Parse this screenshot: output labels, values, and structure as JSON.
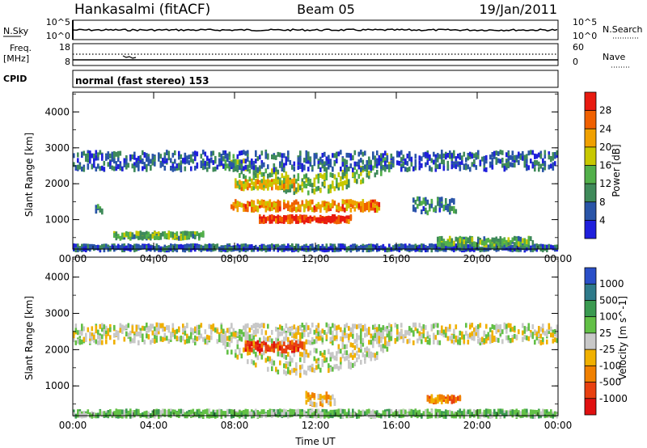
{
  "header": {
    "station": "Hankasalmi (fitACF)",
    "beam": "Beam 05",
    "date": "19/Jan/2011"
  },
  "panels": {
    "nsky": {
      "label": "N.Sky",
      "tick_top": "10^5",
      "tick_bottom": "10^0",
      "right_label": "N.Search",
      "right_tick_top": "10^5",
      "right_tick_bottom": "10^0"
    },
    "freq": {
      "label_line1": "Freq.",
      "label_line2": "[MHz]",
      "tick_top": "18",
      "tick_bottom": "8",
      "right_label": "Nave",
      "right_tick_top": "60",
      "right_tick_bottom": "0"
    },
    "cpid": {
      "label": "CPID",
      "text": "normal (fast stereo) 153"
    }
  },
  "chart_data": [
    {
      "type": "heatmap",
      "name": "power",
      "title": "",
      "xlabel": "",
      "ylabel": "Slant Range [km]",
      "x_ticks": [
        "00:00",
        "04:00",
        "08:00",
        "12:00",
        "16:00",
        "20:00",
        "00:00"
      ],
      "xlim_hours": [
        0,
        24
      ],
      "ylim_km": [
        180,
        4550
      ],
      "y_ticks": [
        "1000",
        "2000",
        "3000",
        "4000"
      ],
      "colorbar": {
        "label": "Power [dB]",
        "ticks": [
          "4",
          "8",
          "12",
          "16",
          "20",
          "24",
          "28"
        ],
        "range": [
          0,
          30
        ],
        "colors": [
          "#1f1fdc",
          "#2a55a8",
          "#3f8a5a",
          "#52b04a",
          "#c8c800",
          "#f0a000",
          "#f06000",
          "#e81a10"
        ]
      },
      "echo_regions": [
        {
          "t_start": 7.3,
          "t_end": 15.8,
          "range_km": 2050,
          "depth_km": 500,
          "level": 13
        },
        {
          "t_start": 7.8,
          "t_end": 15.2,
          "range_km": 1450,
          "depth_km": 250,
          "level": 22
        },
        {
          "t_start": 9.2,
          "t_end": 13.8,
          "range_km": 1080,
          "depth_km": 150,
          "level": 27
        },
        {
          "t_start": 8.0,
          "t_end": 11.0,
          "range_km": 2050,
          "depth_km": 250,
          "level": 19
        },
        {
          "t_start": 0.0,
          "t_end": 24.0,
          "range_km": 280,
          "depth_km": 120,
          "level": 6
        },
        {
          "t_start": 2.0,
          "t_end": 6.5,
          "range_km": 620,
          "depth_km": 150,
          "level": 12
        },
        {
          "t_start": 1.1,
          "t_end": 1.5,
          "range_km": 1350,
          "depth_km": 250,
          "level": 10
        },
        {
          "t_start": 16.8,
          "t_end": 19.0,
          "range_km": 1450,
          "depth_km": 400,
          "level": 8
        },
        {
          "t_start": 18.0,
          "t_end": 22.8,
          "range_km": 450,
          "depth_km": 200,
          "level": 12
        },
        {
          "t_start": 0.0,
          "t_end": 24.0,
          "range_km": 2700,
          "depth_km": 500,
          "level": 6
        }
      ]
    },
    {
      "type": "heatmap",
      "name": "velocity",
      "title": "",
      "xlabel": "Time UT",
      "ylabel": "Slant Range [km]",
      "x_ticks": [
        "00:00",
        "04:00",
        "08:00",
        "12:00",
        "16:00",
        "20:00",
        "00:00"
      ],
      "xlim_hours": [
        0,
        24
      ],
      "ylim_km": [
        180,
        4550
      ],
      "y_ticks": [
        "1000",
        "2000",
        "3000",
        "4000"
      ],
      "colorbar": {
        "label": "Velocity [m s^-1]",
        "ticks": [
          "1000",
          "500",
          "100",
          "25",
          "-25",
          "-100",
          "-500",
          "-1000"
        ],
        "colors": [
          "#2a4fc8",
          "#2e7a8a",
          "#3a9a50",
          "#62c046",
          "#c8c8c8",
          "#f0b000",
          "#f08000",
          "#e84010",
          "#e01010"
        ]
      },
      "echo_regions": [
        {
          "t_start": 7.3,
          "t_end": 15.8,
          "range_km": 1700,
          "depth_km": 700,
          "level": 4
        },
        {
          "t_start": 8.5,
          "t_end": 11.5,
          "range_km": 2150,
          "depth_km": 250,
          "level": 7
        },
        {
          "t_start": 11.5,
          "t_end": 13.0,
          "range_km": 700,
          "depth_km": 350,
          "level": 5
        },
        {
          "t_start": 17.5,
          "t_end": 19.2,
          "range_km": 700,
          "depth_km": 150,
          "level": 6
        },
        {
          "t_start": 0.0,
          "t_end": 24.0,
          "range_km": 300,
          "depth_km": 150,
          "level": 3
        },
        {
          "t_start": 0.0,
          "t_end": 24.0,
          "range_km": 2500,
          "depth_km": 500,
          "level": 4
        }
      ]
    }
  ]
}
